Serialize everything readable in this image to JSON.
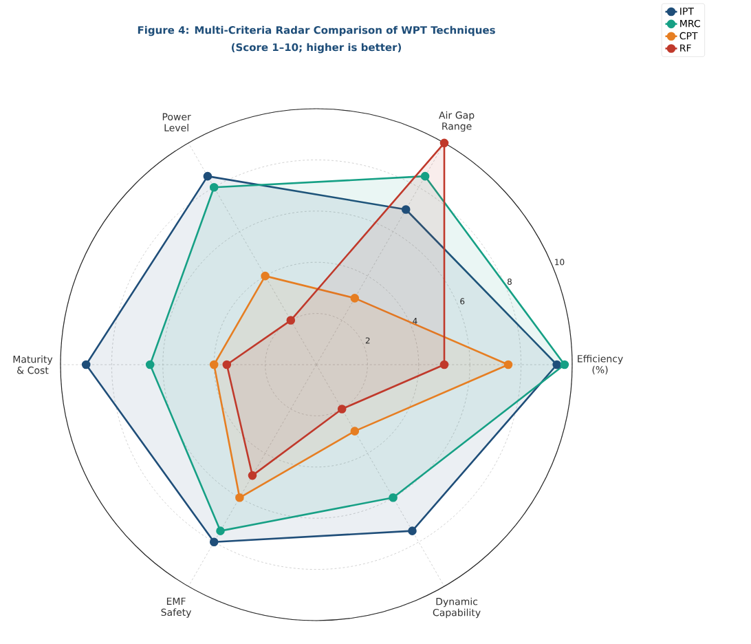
{
  "chart_data": {
    "type": "radar",
    "title": "Figure 4: Multi-Criteria Radar Comparison of WPT Techniques",
    "subtitle": "(Score 1–10; higher is better)",
    "categories": [
      "Air Gap Range",
      "Efficiency (%)",
      "Dynamic Capability",
      "EMF Safety",
      "Maturity & Cost",
      "Power Level"
    ],
    "series": [
      {
        "name": "IPT",
        "color": "#1f4e79",
        "values": [
          7.0,
          9.4,
          7.5,
          8.0,
          9.0,
          8.5
        ]
      },
      {
        "name": "MRC",
        "color": "#16a085",
        "values": [
          8.5,
          9.7,
          6.0,
          7.5,
          6.5,
          8.0
        ]
      },
      {
        "name": "CPT",
        "color": "#e67e22",
        "values": [
          3.0,
          7.5,
          3.0,
          6.0,
          4.0,
          4.0
        ]
      },
      {
        "name": "RF",
        "color": "#c0392b",
        "values": [
          10,
          5.0,
          2.0,
          5.0,
          3.5,
          2.0
        ]
      }
    ],
    "ylim": [
      0,
      10
    ],
    "yticks": [
      2,
      4,
      6,
      8,
      10
    ],
    "grid": true,
    "legend": "top right",
    "marker": "circle",
    "line_style": "solid"
  }
}
